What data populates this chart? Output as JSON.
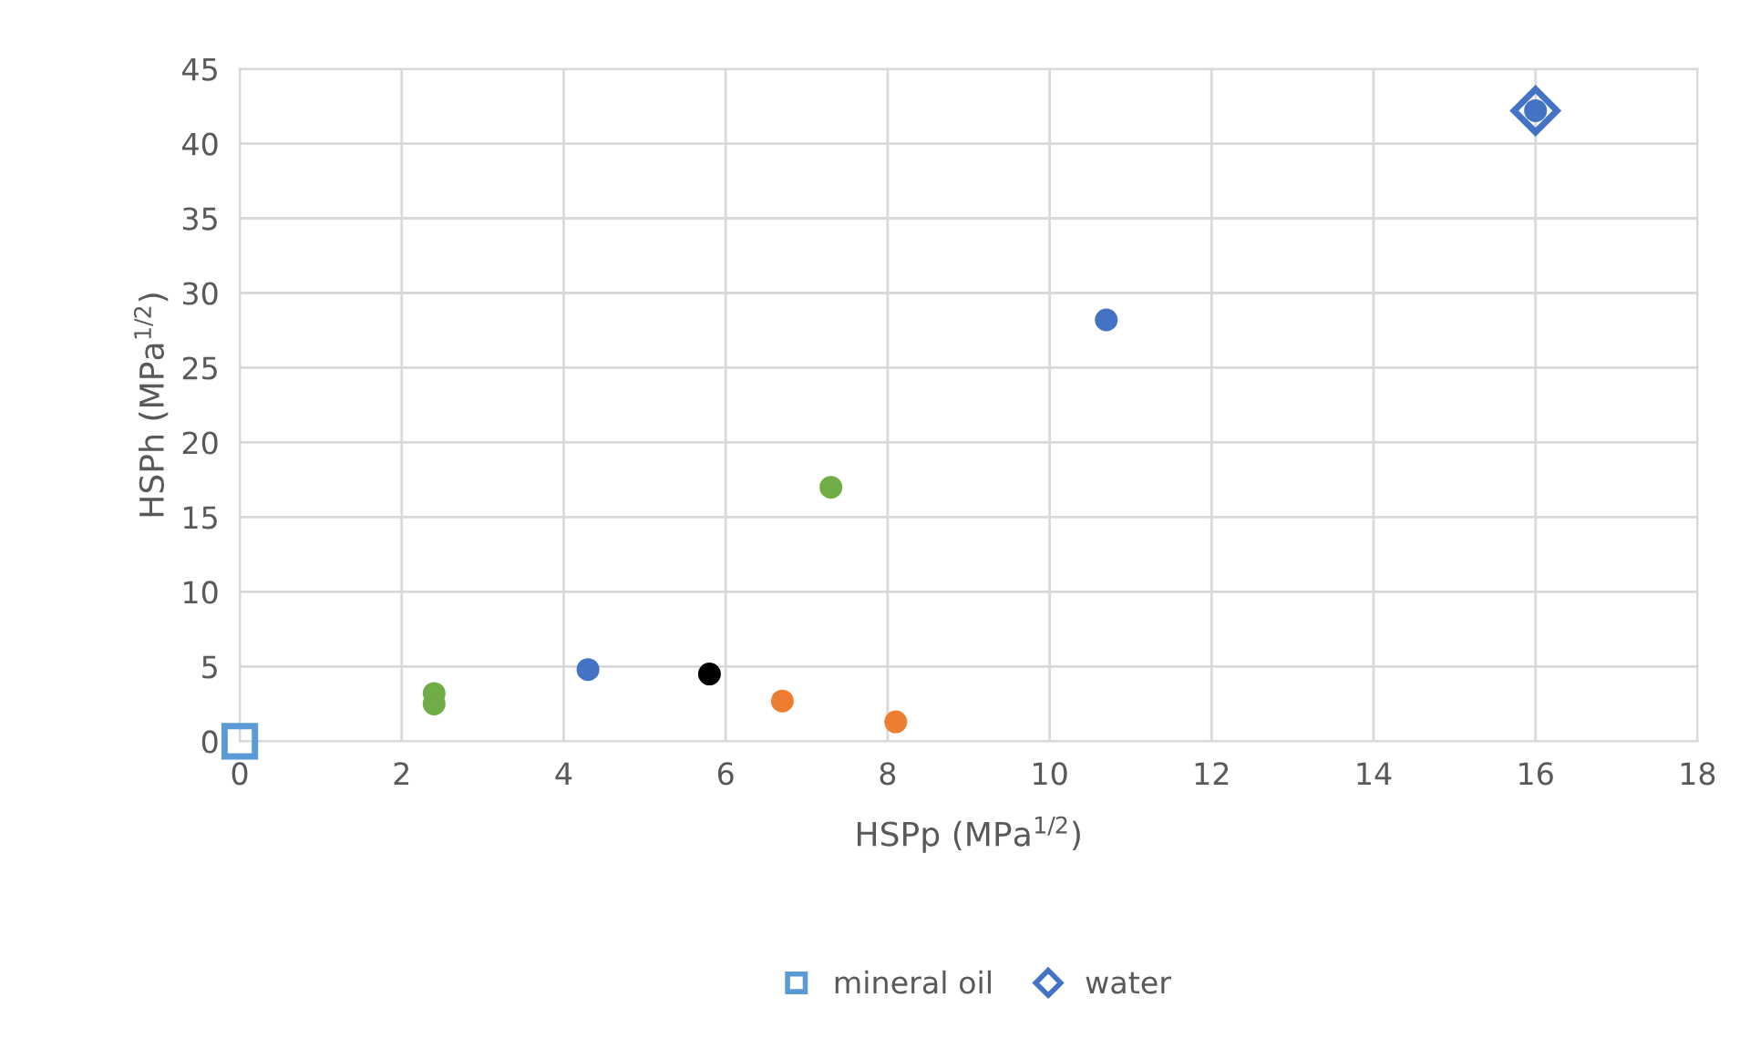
{
  "chart_data": {
    "type": "scatter",
    "xlabel": "HSPp (MPa$^{1/2}$)",
    "ylabel": "HSPh (MPa$^{1/2}$)",
    "xlim": [
      0,
      18
    ],
    "xticks": [
      0,
      2,
      4,
      6,
      8,
      10,
      12,
      14,
      16,
      18
    ],
    "ylim": [
      0,
      45
    ],
    "yticks": [
      0,
      5,
      10,
      15,
      20,
      25,
      30,
      35,
      40,
      45
    ],
    "grid": true,
    "legend": "bottom",
    "marker": "circle",
    "series": [
      {
        "color": "#4472c4",
        "x": [
          4.3,
          10.7,
          16
        ],
        "values": [
          4.8,
          28.2,
          42.2
        ]
      },
      {
        "color": "#70ad47",
        "x": [
          2.4,
          2.4,
          7.3
        ],
        "values": [
          3.2,
          2.5,
          17.0
        ]
      },
      {
        "color": "#000000",
        "x": [
          5.8
        ],
        "values": [
          4.5
        ]
      },
      {
        "color": "#ed7d31",
        "x": [
          6.7,
          8.1
        ],
        "values": [
          2.7,
          1.3
        ]
      },
      {
        "name": "mineral oil",
        "color": "#5b9bd5",
        "marker": "square",
        "x": [
          0
        ],
        "values": [
          0
        ]
      },
      {
        "name": "water",
        "color": "#4472c4",
        "marker": "diamond",
        "x": [
          16
        ],
        "values": [
          42.2
        ]
      }
    ]
  }
}
